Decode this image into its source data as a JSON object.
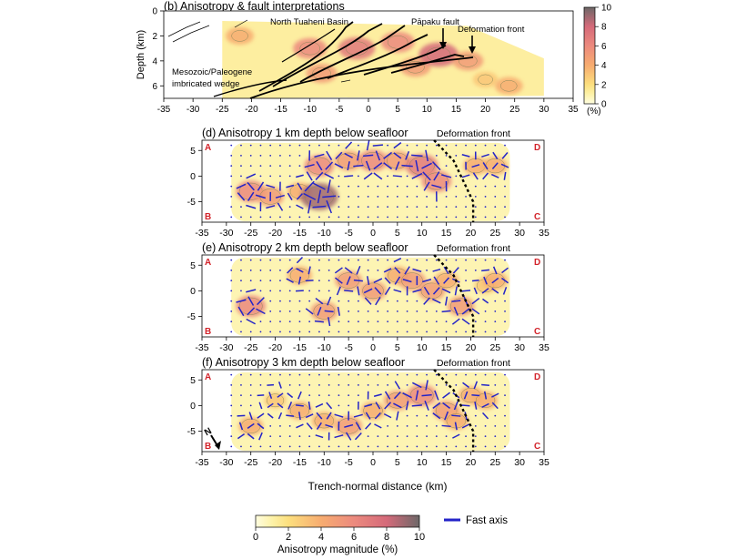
{
  "scale": {
    "stops": [
      {
        "v": 0,
        "c": "#fffde0"
      },
      {
        "v": 1,
        "c": "#fdf2a8"
      },
      {
        "v": 2,
        "c": "#fcdf7e"
      },
      {
        "v": 4,
        "c": "#f7ac70"
      },
      {
        "v": 6,
        "c": "#ec8a7e"
      },
      {
        "v": 8,
        "c": "#d56a7a"
      },
      {
        "v": 10,
        "c": "#6d6868"
      }
    ],
    "fast_axis_color": "#2323c8"
  },
  "top_panel": {
    "title": "(b) Anisotropy & fault interpretations",
    "ylabel": "Depth (km)",
    "yticks": [
      "0",
      "2",
      "4",
      "6"
    ],
    "xticks": [
      "-35",
      "-30",
      "-25",
      "-20",
      "-15",
      "-10",
      "-5",
      "0",
      "5",
      "10",
      "15",
      "20",
      "25",
      "30",
      "35"
    ],
    "colorbar_ticks": [
      "0",
      "2",
      "4",
      "6",
      "8",
      "10"
    ],
    "colorbar_unit": "(%)",
    "annotations": {
      "basin": "North Tuaheni Basin",
      "fault": "Pāpaku fault",
      "front": "Deformation front",
      "wedge1": "Mesozoic/Paleogene",
      "wedge2": "imbricated wedge"
    }
  },
  "map_panels": [
    {
      "title": "(d) Anisotropy 1 km depth below seafloor",
      "front_label": "Deformation front"
    },
    {
      "title": "(e) Anisotropy 2 km depth below seafloor",
      "front_label": "Deformation front"
    },
    {
      "title": "(f) Anisotropy 3 km depth below seafloor",
      "front_label": "Deformation front"
    }
  ],
  "map_axes": {
    "xticks": [
      "-35",
      "-30",
      "-25",
      "-20",
      "-15",
      "-10",
      "-5",
      "0",
      "5",
      "10",
      "15",
      "20",
      "25",
      "30",
      "35"
    ],
    "yticks": [
      "5",
      "0",
      "-5"
    ],
    "corners": [
      "A",
      "D",
      "B",
      "C"
    ]
  },
  "xlabel": "Trench-normal distance (km)",
  "north_label": "N",
  "bottom_legend": {
    "title": "Anisotropy  magnitude (%)",
    "ticks": [
      "0",
      "2",
      "4",
      "6",
      "8",
      "10"
    ],
    "fast_axis_label": "Fast axis"
  },
  "chart_data": [
    {
      "type": "heatmap",
      "title": "(b) Anisotropy & fault interpretations",
      "ylabel": "Depth (km)",
      "xlim": [
        -35,
        35
      ],
      "ylim": [
        7,
        0
      ],
      "colorbar": {
        "range": [
          0,
          10
        ],
        "unit": "(%)"
      },
      "hotspots": [
        {
          "x": -22,
          "y": 2.0,
          "v": 4
        },
        {
          "x": -10,
          "y": 3.0,
          "v": 6
        },
        {
          "x": -8,
          "y": 5.0,
          "v": 5
        },
        {
          "x": -2,
          "y": 3.0,
          "v": 7
        },
        {
          "x": 5,
          "y": 2.5,
          "v": 6
        },
        {
          "x": 8,
          "y": 4.5,
          "v": 5
        },
        {
          "x": 12,
          "y": 3.5,
          "v": 8
        },
        {
          "x": 17,
          "y": 4.0,
          "v": 5
        },
        {
          "x": 20,
          "y": 5.5,
          "v": 3
        },
        {
          "x": 24,
          "y": 6.0,
          "v": 4
        }
      ]
    },
    {
      "type": "heatmap",
      "title": "(d) Anisotropy 1 km depth below seafloor",
      "xlabel": "Trench-normal distance (km)",
      "xlim": [
        -35,
        35
      ],
      "ylim": [
        -9,
        7
      ],
      "deformation_front": [
        [
          12.5,
          7
        ],
        [
          16.5,
          3
        ],
        [
          19,
          -2
        ],
        [
          20.5,
          -5
        ],
        [
          20.5,
          -9
        ]
      ],
      "hotspots": [
        {
          "x": -25,
          "y": -3,
          "v": 6
        },
        {
          "x": -21,
          "y": -4,
          "v": 5
        },
        {
          "x": -15,
          "y": -3,
          "v": 4
        },
        {
          "x": -11,
          "y": -4,
          "v": 9
        },
        {
          "x": -11,
          "y": 2,
          "v": 6
        },
        {
          "x": -5,
          "y": 3,
          "v": 5
        },
        {
          "x": 0,
          "y": 3,
          "v": 6
        },
        {
          "x": 5,
          "y": 3,
          "v": 5
        },
        {
          "x": 10,
          "y": 2,
          "v": 7
        },
        {
          "x": 13,
          "y": -1,
          "v": 6
        },
        {
          "x": 21,
          "y": 2,
          "v": 4
        },
        {
          "x": 25,
          "y": 2,
          "v": 4
        }
      ]
    },
    {
      "type": "heatmap",
      "title": "(e) Anisotropy 2 km depth below seafloor",
      "xlabel": "Trench-normal distance (km)",
      "xlim": [
        -35,
        35
      ],
      "ylim": [
        -9,
        7
      ],
      "deformation_front": [
        [
          12.5,
          7
        ],
        [
          16.5,
          3
        ],
        [
          19,
          -2
        ],
        [
          20.5,
          -5
        ],
        [
          20.5,
          -9
        ]
      ],
      "hotspots": [
        {
          "x": -25,
          "y": -3,
          "v": 6
        },
        {
          "x": -15,
          "y": 3,
          "v": 4
        },
        {
          "x": -10,
          "y": -4,
          "v": 5
        },
        {
          "x": -5,
          "y": 2,
          "v": 5
        },
        {
          "x": 0,
          "y": 0,
          "v": 5
        },
        {
          "x": 5,
          "y": 3,
          "v": 4
        },
        {
          "x": 8,
          "y": 2,
          "v": 5
        },
        {
          "x": 12,
          "y": 0,
          "v": 5
        },
        {
          "x": 15,
          "y": 2,
          "v": 4
        },
        {
          "x": 18,
          "y": -3,
          "v": 5
        },
        {
          "x": 23,
          "y": 1,
          "v": 3
        },
        {
          "x": 25,
          "y": 2,
          "v": 4
        }
      ]
    },
    {
      "type": "heatmap",
      "title": "(f) Anisotropy 3 km depth below seafloor",
      "xlabel": "Trench-normal distance (km)",
      "xlim": [
        -35,
        35
      ],
      "ylim": [
        -9,
        7
      ],
      "deformation_front": [
        [
          12.5,
          7
        ],
        [
          16.5,
          3
        ],
        [
          19,
          -2
        ],
        [
          20.5,
          -5
        ],
        [
          20.5,
          -9
        ]
      ],
      "hotspots": [
        {
          "x": -25,
          "y": -4,
          "v": 4
        },
        {
          "x": -20,
          "y": 1,
          "v": 3
        },
        {
          "x": -15,
          "y": -1,
          "v": 4
        },
        {
          "x": -10,
          "y": -3,
          "v": 4
        },
        {
          "x": -5,
          "y": -4,
          "v": 5
        },
        {
          "x": 0,
          "y": -1,
          "v": 4
        },
        {
          "x": 5,
          "y": 1,
          "v": 5
        },
        {
          "x": 10,
          "y": 2,
          "v": 6
        },
        {
          "x": 15,
          "y": -1,
          "v": 5
        },
        {
          "x": 17,
          "y": -3,
          "v": 4
        },
        {
          "x": 20,
          "y": 2,
          "v": 4
        },
        {
          "x": 23,
          "y": 1,
          "v": 4
        }
      ]
    }
  ]
}
